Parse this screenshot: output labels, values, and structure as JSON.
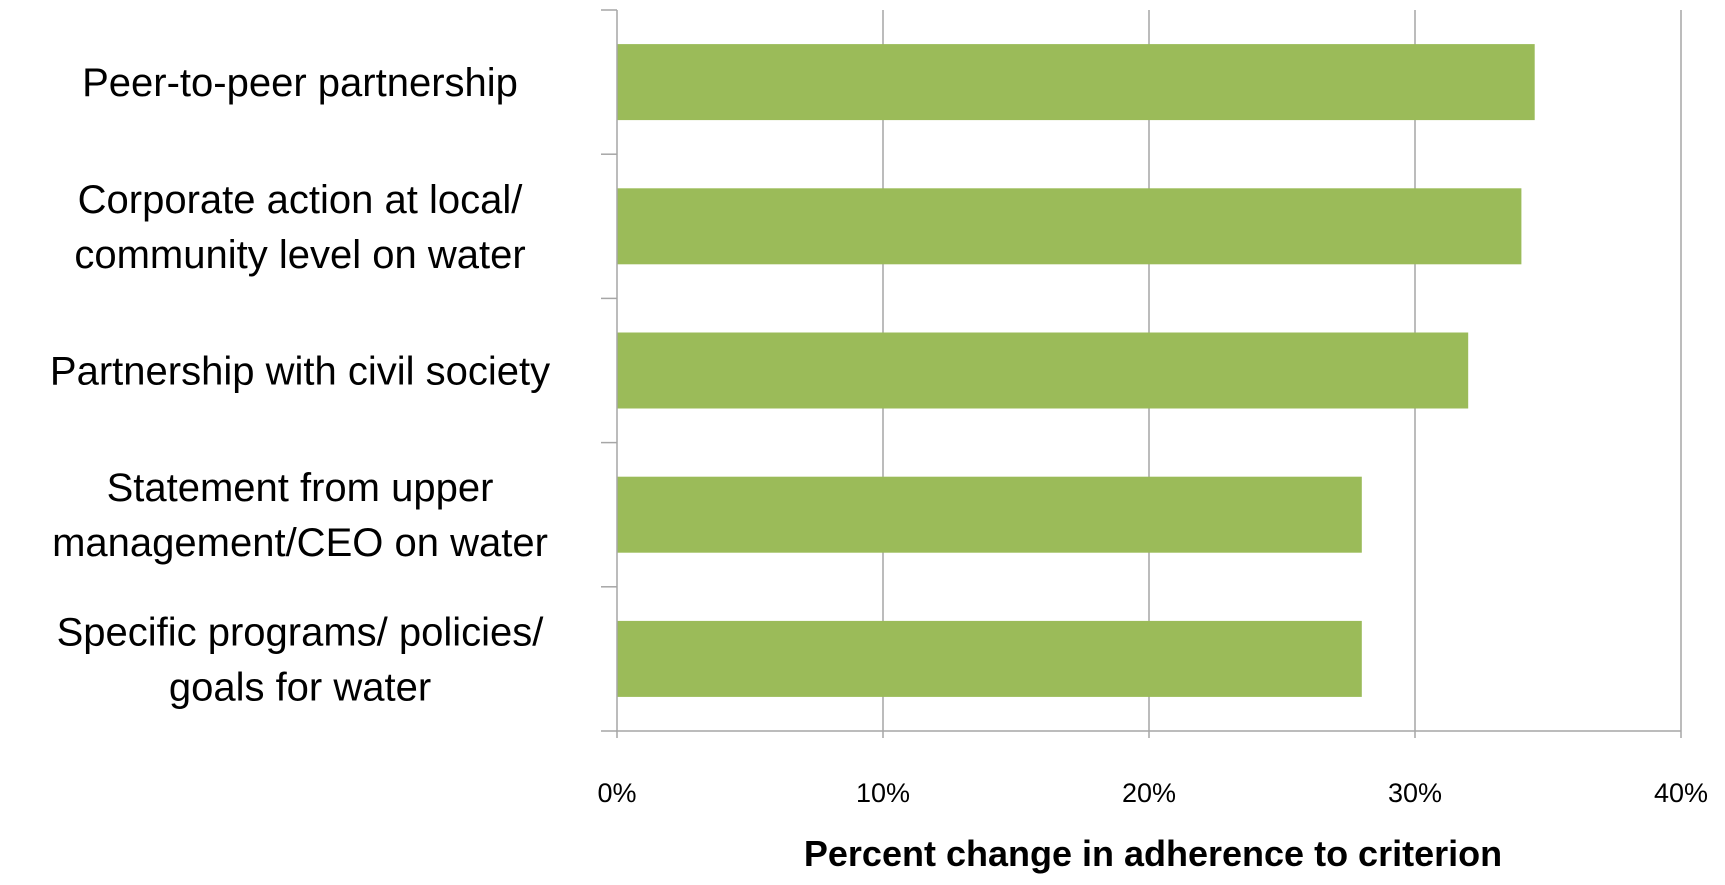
{
  "chart_data": {
    "type": "bar",
    "orientation": "horizontal",
    "categories": [
      [
        "Peer-to-peer partnership"
      ],
      [
        "Corporate action at local/",
        "community level on water"
      ],
      [
        "Partnership with civil society"
      ],
      [
        "Statement from upper",
        "management/CEO on water"
      ],
      [
        "Specific programs/ policies/",
        "goals for water"
      ]
    ],
    "values": [
      34.5,
      34.0,
      32.0,
      28.0,
      28.0
    ],
    "value_unit": "%",
    "xlim": [
      0,
      40
    ],
    "xticks": [
      0,
      10,
      20,
      30,
      40
    ],
    "xtick_labels": [
      "0%",
      "10%",
      "20%",
      "30%",
      "40%"
    ],
    "xlabel": "Percent change in adherence to criterion",
    "ylabel": "",
    "title": "",
    "grid": "vertical",
    "legend": "none",
    "colors": {
      "bar": "#9BBB59",
      "grid": "#a6a6a6",
      "axis": "#a6a6a6",
      "text": "#000000"
    }
  }
}
